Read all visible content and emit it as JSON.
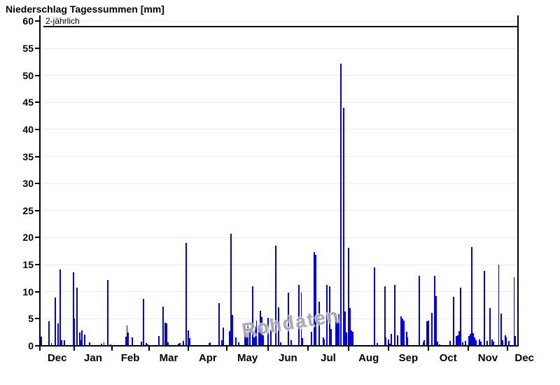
{
  "title": "Niederschlag Tagessummen [mm]",
  "watermark": "Rohdaten",
  "threshold": {
    "label": "2-jährlich",
    "value": 59
  },
  "colors": {
    "bar": "#0000ee",
    "axis": "#000000",
    "grid": "#ececec",
    "threshold": "#000000",
    "watermark": "#a3a3a3",
    "background": "#ffffff"
  },
  "chart_data": {
    "type": "bar",
    "title": "Niederschlag Tagessummen [mm]",
    "xlabel": "",
    "ylabel": "",
    "ylim": [
      0,
      60
    ],
    "grid": true,
    "y_ticks": [
      0,
      5,
      10,
      15,
      20,
      25,
      30,
      35,
      40,
      45,
      50,
      55,
      60
    ],
    "threshold_value": 59,
    "threshold_label": "2-jährlich",
    "total_days": 373,
    "months": [
      {
        "label": "Dec",
        "start_day": 0,
        "label_day": 13.5
      },
      {
        "label": "Jan",
        "start_day": 27,
        "label_day": 41.5
      },
      {
        "label": "Feb",
        "start_day": 56,
        "label_day": 70.5
      },
      {
        "label": "Mar",
        "start_day": 85,
        "label_day": 100.5
      },
      {
        "label": "Apr",
        "start_day": 116,
        "label_day": 131
      },
      {
        "label": "May",
        "start_day": 146,
        "label_day": 162
      },
      {
        "label": "Jun",
        "start_day": 178,
        "label_day": 193.5
      },
      {
        "label": "Jul",
        "start_day": 209,
        "label_day": 225
      },
      {
        "label": "Aug",
        "start_day": 241,
        "label_day": 256.5
      },
      {
        "label": "Sep",
        "start_day": 272,
        "label_day": 287.5
      },
      {
        "label": "Oct",
        "start_day": 303,
        "label_day": 318.5
      },
      {
        "label": "Nov",
        "start_day": 334,
        "label_day": 349.5
      },
      {
        "label": "Dec",
        "start_day": 365,
        "label_day": 378
      }
    ],
    "bars": [
      [
        1,
        1.7
      ],
      [
        7,
        4.5
      ],
      [
        9,
        0.5
      ],
      [
        12,
        8.9
      ],
      [
        14,
        4.2
      ],
      [
        16,
        14.1
      ],
      [
        17,
        1.1
      ],
      [
        19,
        1.0
      ],
      [
        26,
        13.6
      ],
      [
        27,
        5.0
      ],
      [
        29,
        10.7
      ],
      [
        31,
        2.5
      ],
      [
        32,
        1.0
      ],
      [
        33,
        2.9
      ],
      [
        35,
        2.1
      ],
      [
        39,
        0.7
      ],
      [
        48,
        0.4
      ],
      [
        50,
        0.6
      ],
      [
        53,
        12.2
      ],
      [
        55,
        0.3
      ],
      [
        67,
        1.7
      ],
      [
        68,
        3.8
      ],
      [
        69,
        2.4
      ],
      [
        72,
        1.5
      ],
      [
        79,
        0.8
      ],
      [
        81,
        8.7
      ],
      [
        83,
        0.5
      ],
      [
        84,
        0.3
      ],
      [
        93,
        1.8
      ],
      [
        96,
        7.3
      ],
      [
        98,
        4.3
      ],
      [
        99,
        4.2
      ],
      [
        100,
        0.6
      ],
      [
        108,
        0.4
      ],
      [
        109,
        0.5
      ],
      [
        112,
        0.9
      ],
      [
        114,
        19.0
      ],
      [
        116,
        2.9
      ],
      [
        117,
        1.4
      ],
      [
        132,
        0.5
      ],
      [
        133,
        0.7
      ],
      [
        140,
        7.9
      ],
      [
        142,
        1.0
      ],
      [
        143,
        3.4
      ],
      [
        148,
        2.7
      ],
      [
        149,
        20.7
      ],
      [
        150,
        5.7
      ],
      [
        153,
        1.6
      ],
      [
        155,
        0.6
      ],
      [
        160,
        2.3
      ],
      [
        161,
        1.9
      ],
      [
        162,
        4.0
      ],
      [
        164,
        3.0
      ],
      [
        166,
        11.0
      ],
      [
        167,
        1.5
      ],
      [
        168,
        3.6
      ],
      [
        169,
        4.6
      ],
      [
        171,
        3.2
      ],
      [
        172,
        6.5
      ],
      [
        173,
        5.3
      ],
      [
        174,
        2.0
      ],
      [
        178,
        5.2
      ],
      [
        180,
        3.0
      ],
      [
        184,
        18.5
      ],
      [
        186,
        7.1
      ],
      [
        188,
        0.6
      ],
      [
        194,
        9.9
      ],
      [
        196,
        1.1
      ],
      [
        202,
        11.2
      ],
      [
        204,
        9.8
      ],
      [
        205,
        1.4
      ],
      [
        212,
        2.6
      ],
      [
        214,
        17.4
      ],
      [
        215,
        16.8
      ],
      [
        218,
        8.2
      ],
      [
        221,
        1.5
      ],
      [
        222,
        1.2
      ],
      [
        224,
        11.2
      ],
      [
        226,
        11.0
      ],
      [
        227,
        3.1
      ],
      [
        231,
        5.4
      ],
      [
        232,
        4.5
      ],
      [
        233,
        5.8
      ],
      [
        235,
        52.1
      ],
      [
        237,
        44.0
      ],
      [
        238,
        6.4
      ],
      [
        239,
        2.4
      ],
      [
        241,
        18.1
      ],
      [
        242,
        7.0
      ],
      [
        243,
        2.9
      ],
      [
        244,
        2.6
      ],
      [
        261,
        14.5
      ],
      [
        263,
        0.5
      ],
      [
        269,
        11.0
      ],
      [
        270,
        1.5
      ],
      [
        272,
        1.2
      ],
      [
        273,
        0.4
      ],
      [
        274,
        2.2
      ],
      [
        277,
        11.3
      ],
      [
        279,
        2.0
      ],
      [
        282,
        5.5
      ],
      [
        283,
        5.0
      ],
      [
        284,
        4.6
      ],
      [
        286,
        2.6
      ],
      [
        287,
        1.5
      ],
      [
        296,
        12.9
      ],
      [
        299,
        0.6
      ],
      [
        300,
        1.0
      ],
      [
        302,
        4.5
      ],
      [
        303,
        4.7
      ],
      [
        306,
        6.1
      ],
      [
        308,
        13.0
      ],
      [
        309,
        9.2
      ],
      [
        310,
        0.8
      ],
      [
        312,
        0.3
      ],
      [
        320,
        0.9
      ],
      [
        323,
        9.0
      ],
      [
        325,
        1.8
      ],
      [
        326,
        2.0
      ],
      [
        327,
        2.7
      ],
      [
        328,
        10.7
      ],
      [
        330,
        0.6
      ],
      [
        332,
        0.9
      ],
      [
        335,
        1.8
      ],
      [
        336,
        2.2
      ],
      [
        337,
        18.3
      ],
      [
        338,
        2.3
      ],
      [
        339,
        1.5
      ],
      [
        340,
        1.0
      ],
      [
        343,
        1.2
      ],
      [
        344,
        0.8
      ],
      [
        347,
        13.8
      ],
      [
        349,
        0.9
      ],
      [
        351,
        7.0
      ],
      [
        353,
        1.2
      ],
      [
        354,
        0.8
      ],
      [
        358,
        15.0
      ],
      [
        360,
        6.0
      ],
      [
        361,
        1.0
      ],
      [
        363,
        2.0
      ],
      [
        364,
        1.5
      ],
      [
        366,
        0.9
      ],
      [
        370,
        12.7
      ],
      [
        371,
        1.8
      ]
    ]
  }
}
